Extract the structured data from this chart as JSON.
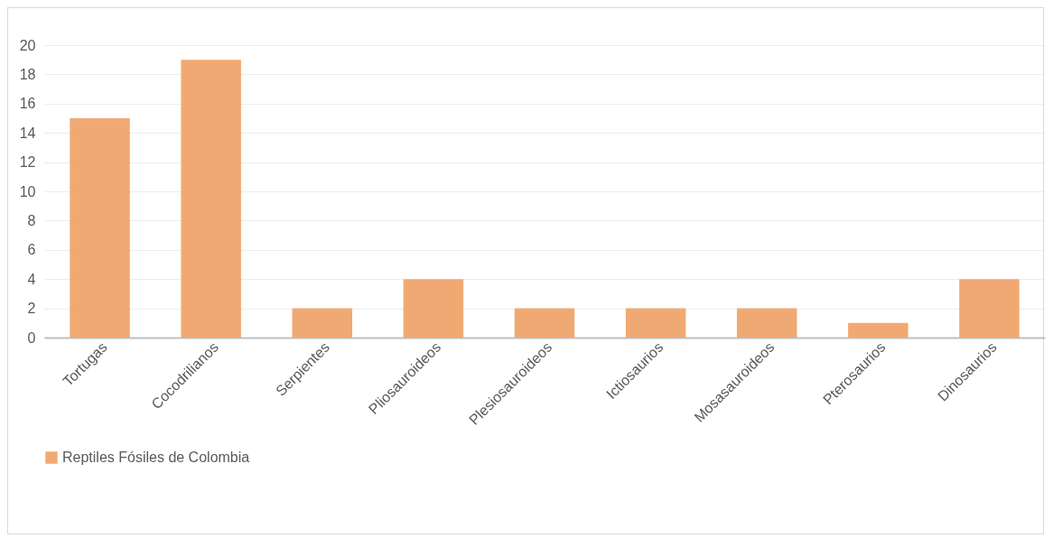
{
  "chart_data": {
    "type": "bar",
    "categories": [
      "Tortugas",
      "Cocodrilianos",
      "Serpientes",
      "Pliosauroideos",
      "Plesiosauroideos",
      "Ictiosaurios",
      "Mosasauroideos",
      "Pterosaurios",
      "Dinosaurios"
    ],
    "series": [
      {
        "name": "Reptiles Fósiles de Colombia",
        "color": "#f0a46c",
        "values": [
          15,
          19,
          2,
          4,
          2,
          2,
          2,
          1,
          4
        ]
      }
    ],
    "ylim": [
      0,
      20
    ],
    "yticks": [
      0,
      2,
      4,
      6,
      8,
      10,
      12,
      14,
      16,
      18,
      20
    ],
    "grid": "y",
    "legend": "bottom"
  }
}
